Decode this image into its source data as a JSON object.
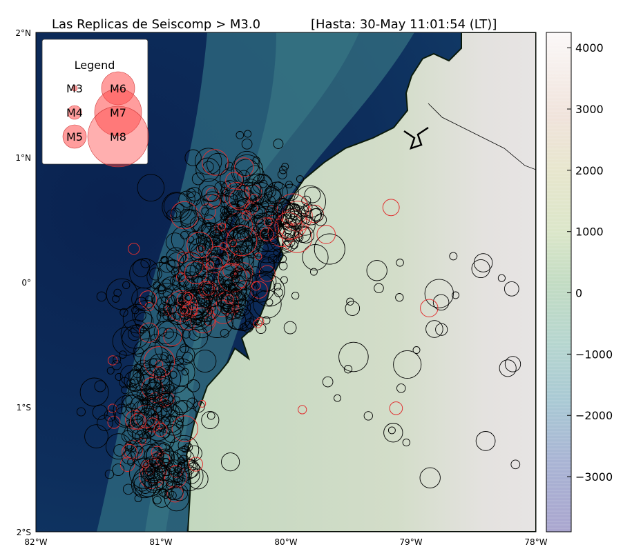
{
  "title": "Las Replicas de Seiscomp > M3.0",
  "subtitle": "[Hasta: 30-May 11:01:54 (LT)]",
  "legend": {
    "title": "Legend",
    "items": [
      "M3",
      "M4",
      "M5",
      "M6",
      "M7",
      "M8"
    ],
    "color": "#ff4d4d"
  },
  "axes": {
    "lat_labels": [
      "2°N",
      "1°N",
      "0°",
      "1°S",
      "2°S"
    ],
    "lon_labels": [
      "82°W",
      "81°W",
      "80°W",
      "79°W",
      "78°W"
    ]
  },
  "colorbar": {
    "ticks": [
      "4000",
      "3000",
      "2000",
      "1000",
      "0",
      "−1000",
      "−2000",
      "−3000"
    ],
    "values": [
      4000,
      3000,
      2000,
      1000,
      0,
      -1000,
      -2000,
      -3000
    ],
    "range": [
      -3900,
      4250
    ]
  },
  "colors": {
    "ocean_deep": "#0c2a5a",
    "ocean_shelf": "#2b6e7e",
    "land": "#c5d9c0",
    "recent_events": "#e03030",
    "older_events": "#000000"
  }
}
